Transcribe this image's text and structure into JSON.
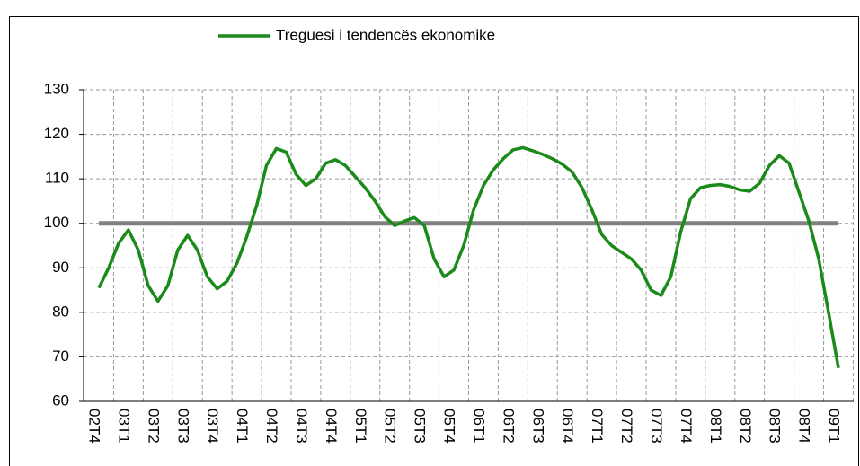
{
  "chart_data": {
    "type": "line",
    "categories": [
      "02T4",
      null,
      null,
      "03T1",
      null,
      null,
      "03T2",
      null,
      null,
      "03T3",
      null,
      null,
      "03T4",
      null,
      null,
      "04T1",
      null,
      null,
      "04T2",
      null,
      null,
      "04T3",
      null,
      null,
      "04T4",
      null,
      null,
      "05T1",
      null,
      null,
      "05T2",
      null,
      null,
      "05T3",
      null,
      null,
      "05T4",
      null,
      null,
      "06T1",
      null,
      null,
      "06T2",
      null,
      null,
      "06T3",
      null,
      null,
      "06T4",
      null,
      null,
      "07T1",
      null,
      null,
      "07T2",
      null,
      null,
      "07T3",
      null,
      null,
      "07T4",
      null,
      null,
      "08T1",
      null,
      null,
      "08T2",
      null,
      null,
      "08T3",
      null,
      null,
      "08T4",
      null,
      null,
      "09T1"
    ],
    "series": [
      {
        "name": "Treguesi i tendencës ekonomike",
        "color": "#1a8a1a",
        "values": [
          85.5,
          90,
          95.5,
          98.5,
          94,
          86,
          82.5,
          86,
          94,
          97.3,
          94,
          88,
          85.3,
          87,
          91,
          97,
          104,
          113,
          116.8,
          116,
          111,
          108.5,
          110,
          113.5,
          114.3,
          113,
          110.5,
          108,
          105,
          101.5,
          99.5,
          100.5,
          101.3,
          99.5,
          92,
          88,
          89.5,
          95,
          103,
          108.5,
          112,
          114.5,
          116.5,
          117,
          116.3,
          115.5,
          114.5,
          113.3,
          111.5,
          108,
          103,
          97.5,
          95,
          93.5,
          92,
          89.5,
          85,
          83.8,
          88,
          98,
          105.5,
          108,
          108.5,
          108.7,
          108.3,
          107.5,
          107.2,
          109,
          113,
          115.2,
          113.5,
          107,
          100.5,
          92,
          80,
          67.5
        ]
      }
    ],
    "reference_line": {
      "value": 100,
      "color": "#808080"
    },
    "ylim": [
      60,
      130
    ],
    "yticks": [
      60,
      70,
      80,
      90,
      100,
      110,
      120,
      130
    ],
    "grid": true,
    "legend": "top"
  }
}
